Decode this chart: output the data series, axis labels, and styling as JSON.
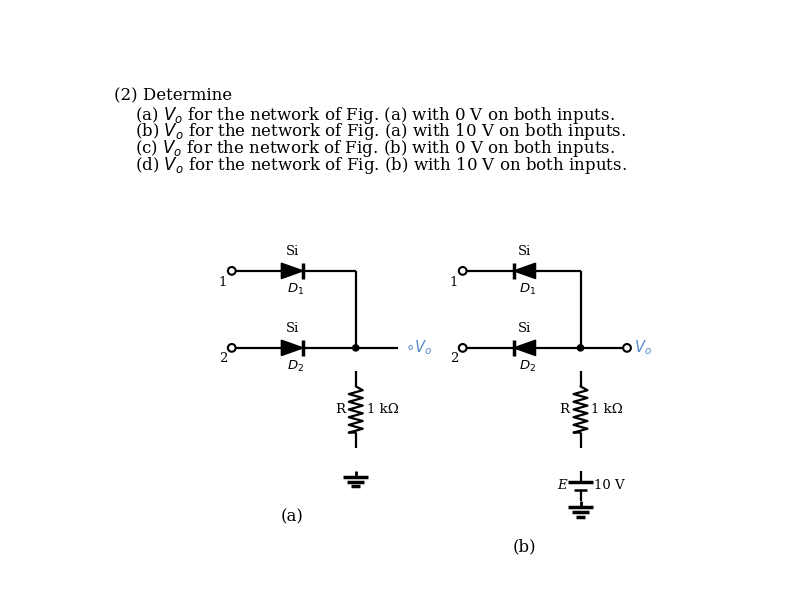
{
  "title_line0": "(2) Determine",
  "title_line1": "(a) $V_o$ for the network of Fig. (a) with 0 V on both inputs.",
  "title_line2": "(b) $V_o$ for the network of Fig. (a) with 10 V on both inputs.",
  "title_line3": "(c) $V_o$ for the network of Fig. (b) with 0 V on both inputs.",
  "title_line4": "(d) $V_o$ for the network of Fig. (b) with 10 V on both inputs.",
  "text_color": "#000000",
  "blue_color": "#5588cc",
  "background_color": "#ffffff",
  "fig_a_label": "(a)",
  "fig_b_label": "(b)",
  "fs_main": 12,
  "fs_circuit": 9.5,
  "lw_circuit": 1.6
}
